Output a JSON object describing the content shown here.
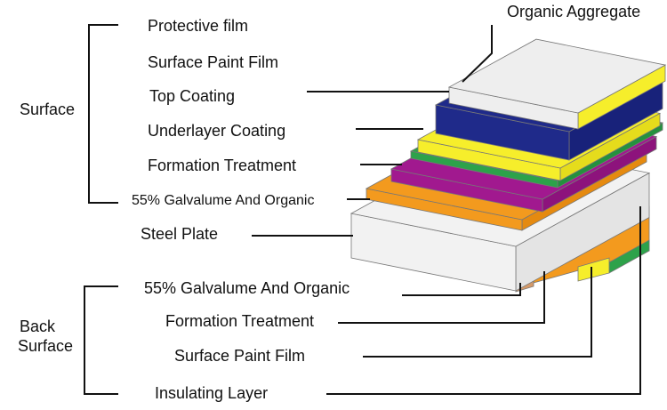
{
  "top_label": "Organic Aggregate",
  "surface": {
    "label": "Surface",
    "layers": [
      "Protective film",
      "Surface Paint Film",
      "Top Coating",
      "Underlayer Coating",
      "Formation Treatment",
      "55% Galvalume And Organic"
    ]
  },
  "core": "Steel Plate",
  "back": {
    "label_lines": [
      "Back",
      "Surface"
    ],
    "layers": [
      "55% Galvalume And Organic",
      "Formation Treatment",
      "Surface Paint Film",
      "Insulating Layer"
    ]
  }
}
